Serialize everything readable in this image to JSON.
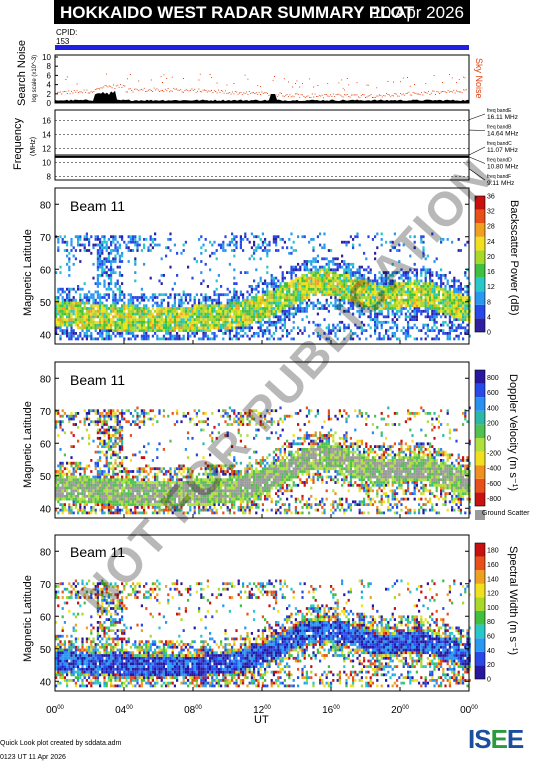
{
  "header": {
    "title": "HOKKAIDO WEST RADAR SUMMARY PLOT",
    "date": "10 Apr 2026",
    "cpid_label": "CPID:",
    "cpid_value": "153"
  },
  "colors": {
    "cpid_bar": "#2020e0",
    "sky_noise": "#e04010",
    "search_noise": "#000000"
  },
  "noise_panel": {
    "ylabel": "Search Noise",
    "ylabel_small": "log scale (x10^-3)",
    "legend": "Sky Noise",
    "yticks": [
      "0",
      "2",
      "4",
      "6",
      "8",
      "10"
    ]
  },
  "freq_panel": {
    "ylabel": "Frequency",
    "unit": "(MHz)",
    "yticks": [
      "8",
      "10",
      "12",
      "14",
      "16"
    ],
    "bands": [
      {
        "label": "freq bandE",
        "value": "16.11 MHz"
      },
      {
        "label": "freq bandB",
        "value": "14.64 MHz"
      },
      {
        "label": "freq bandC",
        "value": "11.07 MHz"
      },
      {
        "label": "freq bandD",
        "value": "10.80 MHz"
      },
      {
        "label": "freq bandF",
        "value": "9.11 MHz"
      }
    ]
  },
  "chart_data": [
    {
      "type": "heatmap",
      "panel": "Power",
      "title": "Beam 11",
      "ylabel": "Magnetic Latitude",
      "yticks": [
        "40",
        "50",
        "60",
        "70",
        "80"
      ],
      "ylim": [
        37,
        85
      ],
      "colorbar_label": "Backscatter Power (dB)",
      "colorbar_ticks": [
        "0",
        "4",
        "8",
        "12",
        "16",
        "20",
        "24",
        "28",
        "32",
        "36"
      ],
      "colorbar_range": [
        0,
        36
      ]
    },
    {
      "type": "heatmap",
      "panel": "Velocity",
      "title": "Beam 11",
      "ylabel": "Magnetic Latitude",
      "yticks": [
        "40",
        "50",
        "60",
        "70",
        "80"
      ],
      "ylim": [
        37,
        85
      ],
      "colorbar_label": "Doppler Velocity (m s⁻¹)",
      "colorbar_ticks": [
        "-800",
        "-600",
        "-400",
        "-200",
        "0",
        "200",
        "400",
        "600",
        "800"
      ],
      "colorbar_range": [
        -900,
        900
      ],
      "ground_scatter_label": "Ground Scatter"
    },
    {
      "type": "heatmap",
      "panel": "Width",
      "title": "Beam 11",
      "ylabel": "Magnetic Latitude",
      "yticks": [
        "40",
        "50",
        "60",
        "70",
        "80"
      ],
      "ylim": [
        37,
        85
      ],
      "colorbar_label": "Spectral Width (m s⁻¹)",
      "colorbar_ticks": [
        "0",
        "20",
        "40",
        "60",
        "80",
        "100",
        "120",
        "140",
        "160",
        "180"
      ],
      "colorbar_range": [
        0,
        190
      ]
    }
  ],
  "xaxis": {
    "label": "UT",
    "ticks": [
      {
        "h": "00",
        "m": "00"
      },
      {
        "h": "04",
        "m": "00"
      },
      {
        "h": "08",
        "m": "00"
      },
      {
        "h": "12",
        "m": "00"
      },
      {
        "h": "16",
        "m": "00"
      },
      {
        "h": "20",
        "m": "00"
      },
      {
        "h": "00",
        "m": "00"
      }
    ]
  },
  "footer": {
    "created": "Quick Look plot created by sddata.adm",
    "timestamp": "0123 UT 11 Apr 2026",
    "logo": "ISEE"
  },
  "watermark": "NOT FOR PUBLICATION"
}
